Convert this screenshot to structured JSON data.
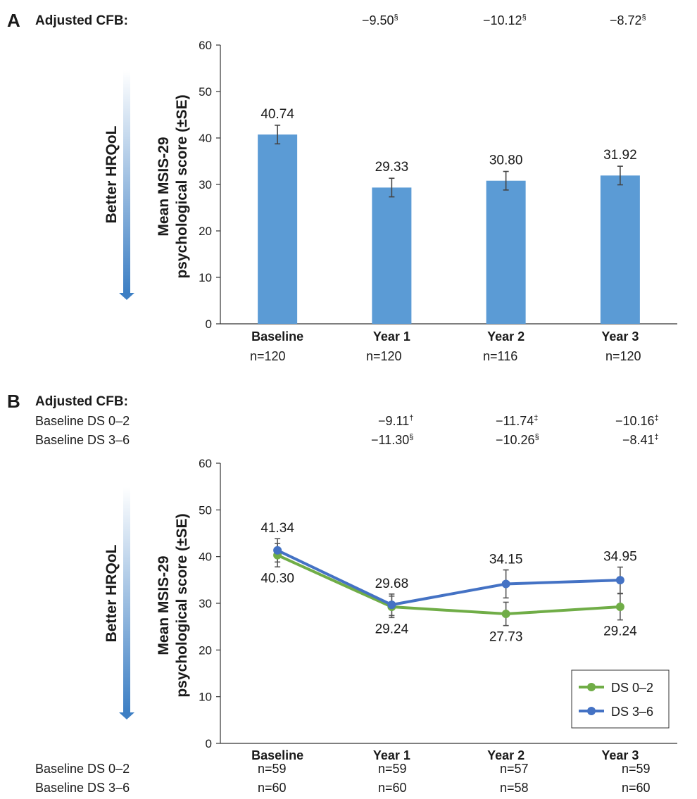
{
  "panelA": {
    "letter": "A",
    "cfb_title": "Adjusted CFB:",
    "cfb_values": [
      {
        "text": "−9.50",
        "sup": "§"
      },
      {
        "text": "−10.12",
        "sup": "§"
      },
      {
        "text": "−8.72",
        "sup": "§"
      }
    ],
    "better_label": "Better HRQoL",
    "ylabel_line1": "Mean MSIS-29",
    "ylabel_line2": "psychological score (±SE)",
    "n_counts": [
      "n=120",
      "n=120",
      "n=116",
      "n=120"
    ]
  },
  "panelB": {
    "letter": "B",
    "cfb_title": "Adjusted CFB:",
    "row1_label": "Baseline DS 0–2",
    "row2_label": "Baseline DS 3–6",
    "row1_values": [
      {
        "text": "−9.11",
        "sup": "†"
      },
      {
        "text": "−11.74",
        "sup": "‡"
      },
      {
        "text": "−10.16",
        "sup": "‡"
      }
    ],
    "row2_values": [
      {
        "text": "−11.30",
        "sup": "§"
      },
      {
        "text": "−10.26",
        "sup": "§"
      },
      {
        "text": "−8.41",
        "sup": "‡"
      }
    ],
    "better_label": "Better HRQoL",
    "ylabel_line1": "Mean MSIS-29",
    "ylabel_line2": "psychological score (±SE)",
    "n_row1_label": "Baseline DS 0–2",
    "n_row2_label": "Baseline DS 3–6",
    "n_row1": [
      "n=59",
      "n=59",
      "n=57",
      "n=59"
    ],
    "n_row2": [
      "n=60",
      "n=60",
      "n=58",
      "n=60"
    ]
  },
  "chart_data": [
    {
      "type": "bar",
      "categories": [
        "Baseline",
        "Year 1",
        "Year 2",
        "Year 3"
      ],
      "values": [
        40.74,
        29.33,
        30.8,
        31.92
      ],
      "value_labels": [
        "40.74",
        "29.33",
        "30.80",
        "31.92"
      ],
      "se": [
        2.0,
        2.0,
        2.0,
        2.0
      ],
      "ylim": [
        0,
        60
      ],
      "yticks": [
        0,
        10,
        20,
        30,
        40,
        50,
        60
      ],
      "ylabel": "Mean MSIS-29 psychological score (±SE)",
      "bar_color": "#5b9bd5",
      "grid": false
    },
    {
      "type": "line",
      "categories": [
        "Baseline",
        "Year 1",
        "Year 2",
        "Year 3"
      ],
      "ylim": [
        0,
        60
      ],
      "yticks": [
        0,
        10,
        20,
        30,
        40,
        50,
        60
      ],
      "ylabel": "Mean MSIS-29 psychological score (±SE)",
      "legend_position": "bottom-right",
      "grid": false,
      "series": [
        {
          "name": "DS 0–2",
          "color": "#70ad47",
          "values": [
            40.3,
            29.24,
            27.73,
            29.24
          ],
          "value_labels": [
            "40.30",
            "29.24",
            "27.73",
            "29.24"
          ],
          "label_side": [
            "below",
            "below",
            "below",
            "below"
          ],
          "se": [
            2.5,
            2.3,
            2.5,
            2.8
          ]
        },
        {
          "name": "DS 3–6",
          "color": "#4472c4",
          "values": [
            41.34,
            29.68,
            34.15,
            34.95
          ],
          "value_labels": [
            "41.34",
            "29.68",
            "34.15",
            "34.95"
          ],
          "label_side": [
            "above",
            "above",
            "above",
            "above"
          ],
          "se": [
            2.5,
            2.3,
            3.0,
            2.8
          ]
        }
      ]
    }
  ]
}
